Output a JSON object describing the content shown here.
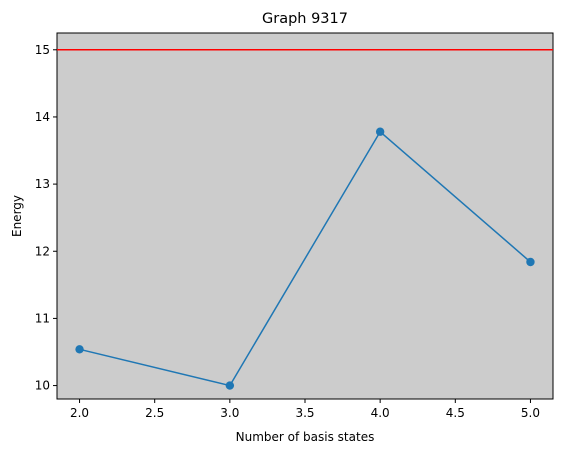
{
  "chart_data": {
    "type": "line",
    "title": "Graph 9317",
    "xlabel": "Number of basis states",
    "ylabel": "Energy",
    "xlim": [
      1.85,
      5.15
    ],
    "ylim": [
      9.8,
      15.25
    ],
    "xticks": [
      2.0,
      2.5,
      3.0,
      3.5,
      4.0,
      4.5,
      5.0
    ],
    "xtick_labels": [
      "2.0",
      "2.5",
      "3.0",
      "3.5",
      "4.0",
      "4.5",
      "5.0"
    ],
    "yticks": [
      10,
      11,
      12,
      13,
      14,
      15
    ],
    "ytick_labels": [
      "10",
      "11",
      "12",
      "13",
      "14",
      "15"
    ],
    "grid": false,
    "background": "#cccccc",
    "series": [
      {
        "x": [
          2.0,
          3.0,
          4.0,
          5.0
        ],
        "values": [
          10.54,
          10.0,
          13.78,
          11.84
        ],
        "color": "#1f77b4",
        "marker": "circle"
      }
    ],
    "reference_lines": [
      {
        "orientation": "horizontal",
        "y": 15.0,
        "color": "#ff0000"
      }
    ]
  }
}
